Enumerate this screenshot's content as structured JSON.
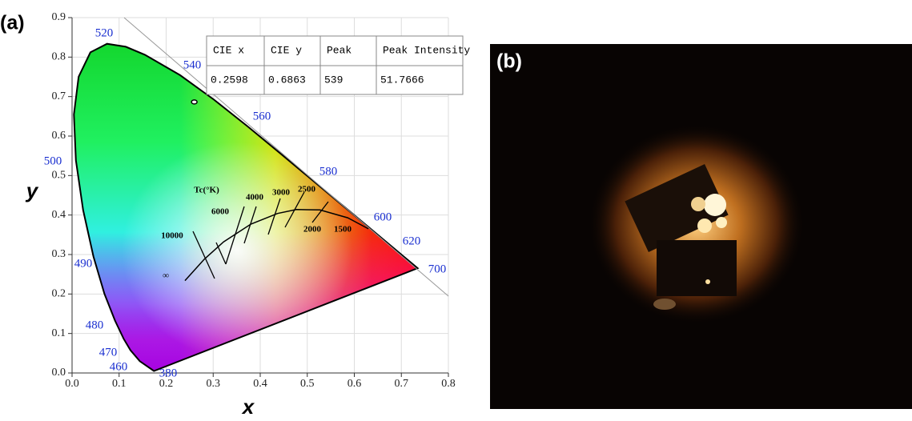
{
  "panel_labels": [
    "(a)",
    "(b)"
  ],
  "chart_data": {
    "type": "scatter",
    "xlabel": "x",
    "ylabel": "y",
    "x": [
      0.2598
    ],
    "values": [
      0.6863
    ],
    "color": "#000000",
    "xlim": [
      0,
      0.8
    ],
    "ylim": [
      0,
      0.9
    ],
    "xticks": [
      {
        "value": 0,
        "label": "0.0"
      },
      {
        "value": 0.1,
        "label": "0.1"
      },
      {
        "value": 0.2,
        "label": "0.2"
      },
      {
        "value": 0.3,
        "label": "0.3"
      },
      {
        "value": 0.4,
        "label": "0.4"
      },
      {
        "value": 0.5,
        "label": "0.5"
      },
      {
        "value": 0.6,
        "label": "0.6"
      },
      {
        "value": 0.7,
        "label": "0.7"
      },
      {
        "value": 0.8,
        "label": "0.8"
      }
    ],
    "yticks": [
      {
        "value": 0,
        "label": "0.0"
      },
      {
        "value": 0.1,
        "label": "0.1"
      },
      {
        "value": 0.2,
        "label": "0.2"
      },
      {
        "value": 0.3,
        "label": "0.3"
      },
      {
        "value": 0.4,
        "label": "0.4"
      },
      {
        "value": 0.5,
        "label": "0.5"
      },
      {
        "value": 0.6,
        "label": "0.6"
      },
      {
        "value": 0.7,
        "label": "0.7"
      },
      {
        "value": 0.8,
        "label": "0.8"
      },
      {
        "value": 0.9,
        "label": "0.9"
      }
    ],
    "grid": true,
    "wavelength_labels": [
      520,
      540,
      560,
      580,
      600,
      620,
      700,
      500,
      490,
      480,
      470,
      460,
      380
    ],
    "planck_title": "Tc(°K)",
    "planck_labels": [
      "10000",
      "6000",
      "4000",
      "3000",
      "2500",
      "2000",
      "1500",
      "∞"
    ]
  },
  "table": {
    "headers": [
      "CIE x",
      "CIE y",
      "Peak",
      "Peak Intensity"
    ],
    "rows": [
      [
        0.2598,
        0.6863,
        539,
        51.7666
      ]
    ]
  }
}
